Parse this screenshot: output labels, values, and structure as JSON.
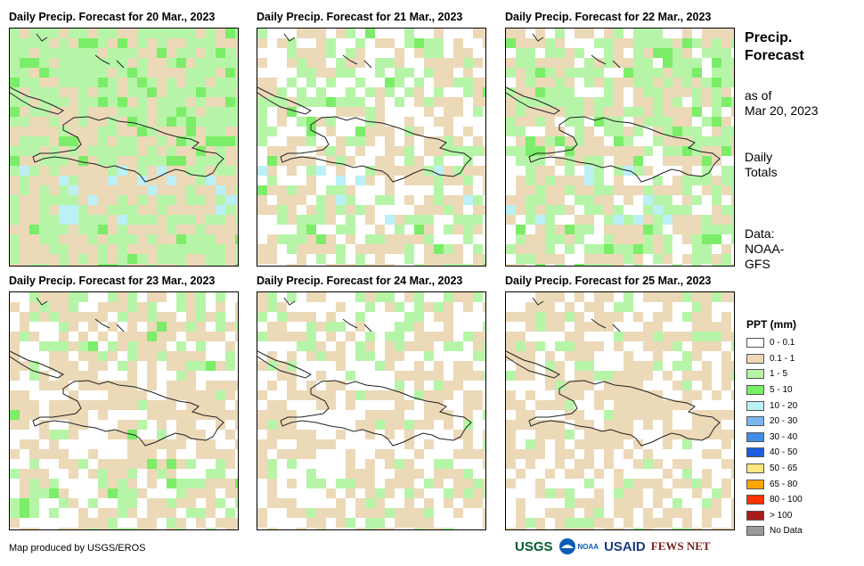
{
  "panels": [
    {
      "title": "Daily Precip. Forecast for 20 Mar., 2023"
    },
    {
      "title": "Daily Precip. Forecast for 21 Mar., 2023"
    },
    {
      "title": "Daily Precip. Forecast for 22 Mar., 2023"
    },
    {
      "title": "Daily Precip. Forecast for 23 Mar., 2023"
    },
    {
      "title": "Daily Precip. Forecast for 24 Mar., 2023"
    },
    {
      "title": "Daily Precip. Forecast for 25 Mar., 2023"
    }
  ],
  "sidebar": {
    "title_line1": "Precip.",
    "title_line2": "Forecast",
    "asof_line1": "as of",
    "asof_line2": "Mar 20, 2023",
    "totals_line1": "Daily",
    "totals_line2": "Totals",
    "data_line1": "Data:",
    "data_line2": "NOAA-",
    "data_line3": "GFS"
  },
  "legend": {
    "title": "PPT (mm)",
    "items": [
      {
        "label": "0 - 0.1",
        "color": "#ffffff"
      },
      {
        "label": "0.1 - 1",
        "color": "#ecd9b8"
      },
      {
        "label": "1 - 5",
        "color": "#b6f5a8"
      },
      {
        "label": "5 - 10",
        "color": "#7ced68"
      },
      {
        "label": "10 - 20",
        "color": "#bbf0f7"
      },
      {
        "label": "20 - 30",
        "color": "#7ab6ee"
      },
      {
        "label": "30 - 40",
        "color": "#3f8ee5"
      },
      {
        "label": "40 - 50",
        "color": "#1c5ee0"
      },
      {
        "label": "50 - 65",
        "color": "#ffe680"
      },
      {
        "label": "65 - 80",
        "color": "#ffa500"
      },
      {
        "label": "80 - 100",
        "color": "#ff3300"
      },
      {
        "label": "> 100",
        "color": "#aa1c1c"
      },
      {
        "label": "No Data",
        "color": "#9a9a9a"
      }
    ]
  },
  "footer": {
    "credit": "Map produced by USGS/EROS",
    "logos": [
      "USGS",
      "NOAA",
      "USAID",
      "FEWS NET"
    ]
  }
}
